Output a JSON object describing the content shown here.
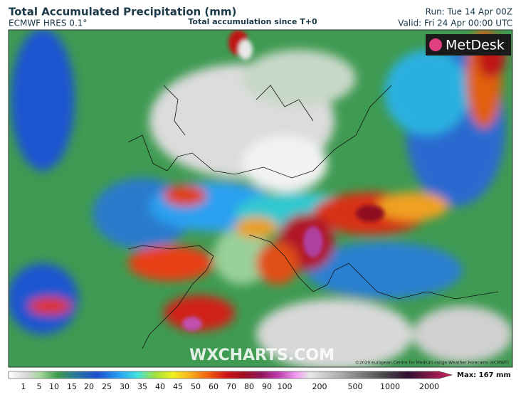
{
  "header": {
    "title": "Total Accumulated Precipitation (mm)",
    "model": "ECMWF HRES 0.1°",
    "subtitle": "Total accumulation since T+0",
    "run": "Run: Tue 14 Apr 00Z",
    "valid": "Valid: Fri 24 Apr 00:00 UTC"
  },
  "map": {
    "logo": "MetDesk",
    "watermark": "WXCHARTS.COM",
    "copyright": "©2020 European Centre for Medium-range Weather Forecasts (ECMWF)"
  },
  "legend": {
    "ticks": [
      1,
      5,
      10,
      15,
      20,
      25,
      30,
      35,
      40,
      45,
      50,
      60,
      70,
      80,
      90,
      100,
      200,
      500,
      1000,
      2000
    ],
    "max_label": "Max: 167 mm"
  }
}
